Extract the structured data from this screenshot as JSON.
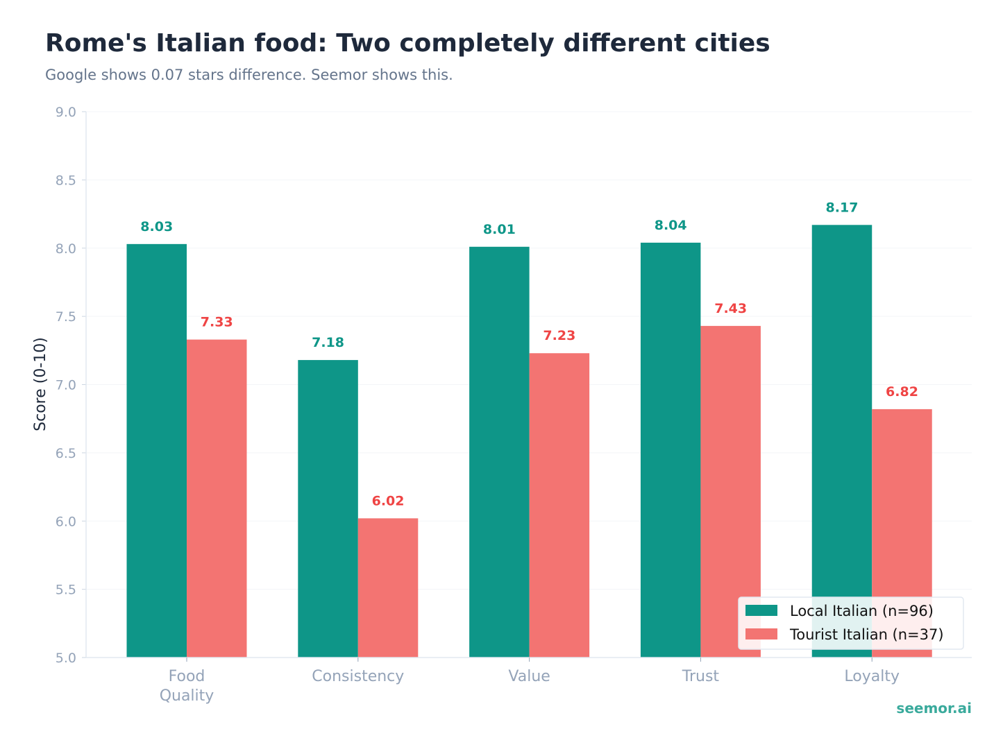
{
  "chart_data": {
    "type": "bar",
    "title": "Rome's Italian food: Two completely different cities",
    "subtitle": "Google shows 0.07 stars difference. Seemor shows this.",
    "xlabel": "",
    "ylabel": "Score (0-10)",
    "ylim": [
      5.0,
      9.0
    ],
    "yticks": [
      "5.0",
      "5.5",
      "6.0",
      "6.5",
      "7.0",
      "7.5",
      "8.0",
      "8.5",
      "9.0"
    ],
    "categories": [
      [
        "Food",
        "Quality"
      ],
      [
        "Consistency"
      ],
      [
        "Value"
      ],
      [
        "Trust"
      ],
      [
        "Loyalty"
      ]
    ],
    "series": [
      {
        "name": "Local Italian (n=96)",
        "color": "#0e9688",
        "label_color": "#0e9688",
        "values": [
          8.03,
          7.18,
          8.01,
          8.04,
          8.17
        ]
      },
      {
        "name": "Tourist Italian (n=37)",
        "color": "#f37472",
        "label_color": "#ef4444",
        "values": [
          7.33,
          6.02,
          7.23,
          7.43,
          6.82
        ]
      }
    ],
    "grid": "horizontal",
    "legend": "lower-right",
    "watermark": "seemor.ai"
  }
}
